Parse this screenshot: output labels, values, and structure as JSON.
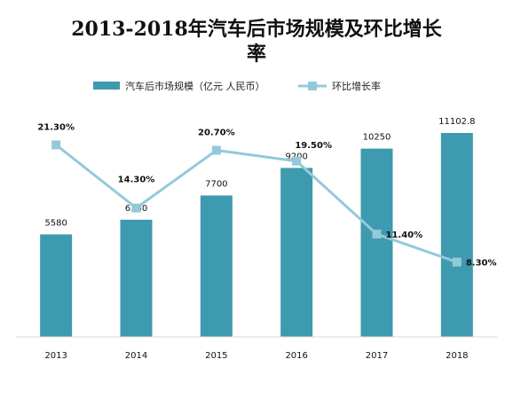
{
  "chart_data": {
    "type": "bar",
    "title_line1": "2013-2018年汽车后市场规模及环比增长",
    "title_line2": "率",
    "categories": [
      "2013",
      "2014",
      "2015",
      "2016",
      "2017",
      "2018"
    ],
    "series": [
      {
        "name": "汽车后市场规模（亿元 人民币）",
        "type": "bar",
        "color": "#3E9AAE",
        "values": [
          5580,
          6380,
          7700,
          9200,
          10250,
          11102.8
        ],
        "labels": [
          "5580",
          "6380",
          "7700",
          "9200",
          "10250",
          "11102.8"
        ]
      },
      {
        "name": "环比增长率",
        "type": "line",
        "color": "#94C9D9",
        "values": [
          21.3,
          14.3,
          20.7,
          19.5,
          11.4,
          8.3
        ],
        "labels": [
          "21.30%",
          "14.30%",
          "20.70%",
          "19.50%",
          "11.40%",
          "8.30%"
        ]
      }
    ],
    "ylim_bar": [
      0,
      14000
    ],
    "ylim_line": [
      0,
      30
    ],
    "grid": false,
    "legend_position": "top-center"
  }
}
